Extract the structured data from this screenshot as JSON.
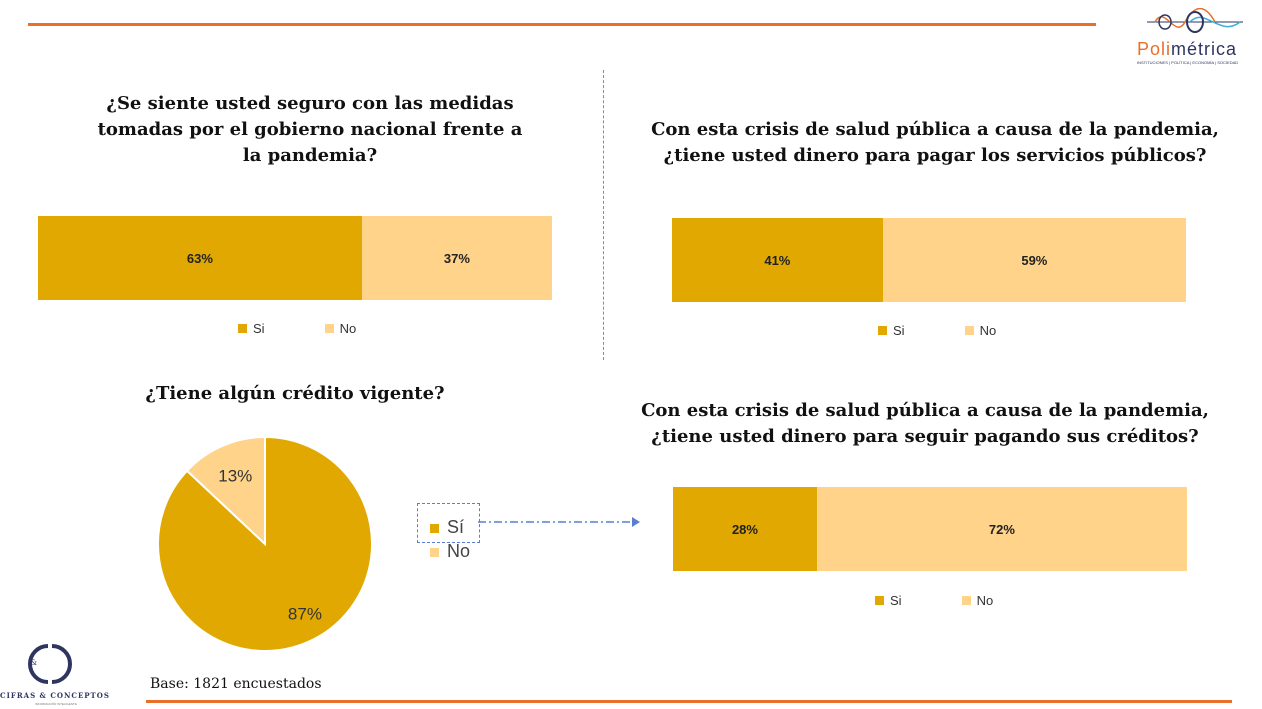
{
  "colors": {
    "si": "#E0A800",
    "no": "#FFD38A",
    "accent": "#E8702A",
    "divider": "#6B8FD6"
  },
  "logos": {
    "polimetrica": {
      "name_a": "Poli",
      "name_b": "métrica",
      "tagline": "INSTITUCIONES | POLÍTICA | ECONOMÍA | SOCIEDAD"
    },
    "cifras": {
      "mark": "&",
      "name": "CIFRAS & CONCEPTOS",
      "tagline": "INFORMACIÓN INTELIGENTE"
    }
  },
  "footer": {
    "base": "Base: 1821 encuestados"
  },
  "chart_data": [
    {
      "type": "bar",
      "stacked": true,
      "title": "¿Se siente usted seguro con las medidas tomadas por el gobierno nacional frente a la pandemia?",
      "categories": [
        "Si",
        "No"
      ],
      "values": [
        63,
        37
      ],
      "labels": [
        "63%",
        "37%"
      ],
      "legend": [
        "Si",
        "No"
      ]
    },
    {
      "type": "bar",
      "stacked": true,
      "title": "Con esta crisis de salud pública a causa de la pandemia, ¿tiene usted dinero para pagar los servicios públicos?",
      "categories": [
        "Si",
        "No"
      ],
      "values": [
        41,
        59
      ],
      "labels": [
        "41%",
        "59%"
      ],
      "legend": [
        "Si",
        "No"
      ]
    },
    {
      "type": "pie",
      "title": "¿Tiene algún crédito vigente?",
      "categories": [
        "Sí",
        "No"
      ],
      "values": [
        87,
        13
      ],
      "labels": [
        "87%",
        "13%"
      ],
      "legend": [
        "Sí",
        "No"
      ]
    },
    {
      "type": "bar",
      "stacked": true,
      "title": "Con esta crisis de salud pública a causa de la pandemia, ¿tiene usted dinero para seguir pagando sus créditos?",
      "categories": [
        "Si",
        "No"
      ],
      "values": [
        28,
        72
      ],
      "labels": [
        "28%",
        "72%"
      ],
      "legend": [
        "Si",
        "No"
      ]
    }
  ]
}
